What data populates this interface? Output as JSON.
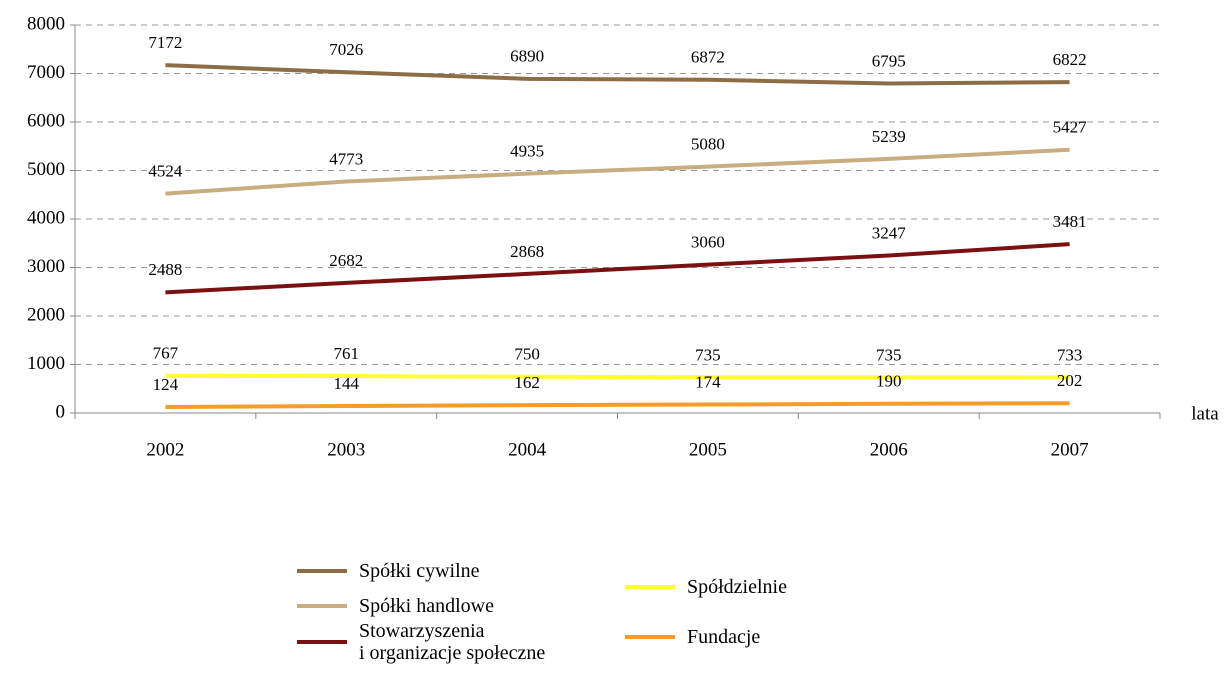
{
  "chart_data": {
    "type": "line",
    "categories": [
      "2002",
      "2003",
      "2004",
      "2005",
      "2006",
      "2007"
    ],
    "x_label": "lata",
    "series": [
      {
        "name": "Spółki cywilne",
        "color": "#8c6d46",
        "values": [
          7172,
          7026,
          6890,
          6872,
          6795,
          6822
        ]
      },
      {
        "name": "Spółki handlowe",
        "color": "#c9ad80",
        "values": [
          4524,
          4773,
          4935,
          5080,
          5239,
          5427
        ]
      },
      {
        "name": "Stowarzyszenia\ni organizacje społeczne",
        "color": "#7b1010",
        "values": [
          2488,
          2682,
          2868,
          3060,
          3247,
          3481
        ]
      },
      {
        "name": "Spółdzielnie",
        "color": "#ffff33",
        "values": [
          767,
          761,
          750,
          735,
          735,
          733
        ]
      },
      {
        "name": "Fundacje",
        "color": "#f59d2a",
        "values": [
          124,
          144,
          162,
          174,
          190,
          202
        ]
      }
    ],
    "ylim": [
      0,
      8000
    ],
    "yticks": [
      0,
      1000,
      2000,
      3000,
      4000,
      5000,
      6000,
      7000,
      8000
    ],
    "grid": true
  }
}
